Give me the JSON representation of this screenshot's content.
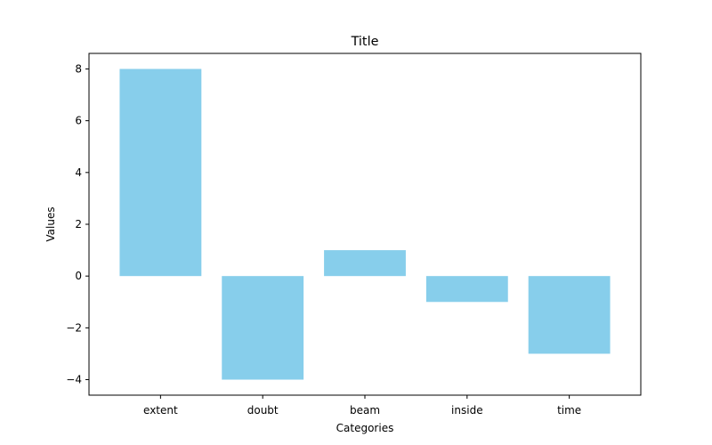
{
  "chart_data": {
    "type": "bar",
    "title": "Title",
    "xlabel": "Categories",
    "ylabel": "Values",
    "categories": [
      "extent",
      "doubt",
      "beam",
      "inside",
      "time"
    ],
    "values": [
      8,
      -4,
      1,
      -1,
      -3
    ],
    "ylim": [
      -4.6,
      8.6
    ],
    "yticks": [
      -4,
      -2,
      0,
      2,
      4,
      6,
      8
    ],
    "ytick_labels": [
      "−4",
      "−2",
      "0",
      "2",
      "4",
      "6",
      "8"
    ],
    "grid": false,
    "legend": "none",
    "bar_color": "#87CEEB"
  }
}
